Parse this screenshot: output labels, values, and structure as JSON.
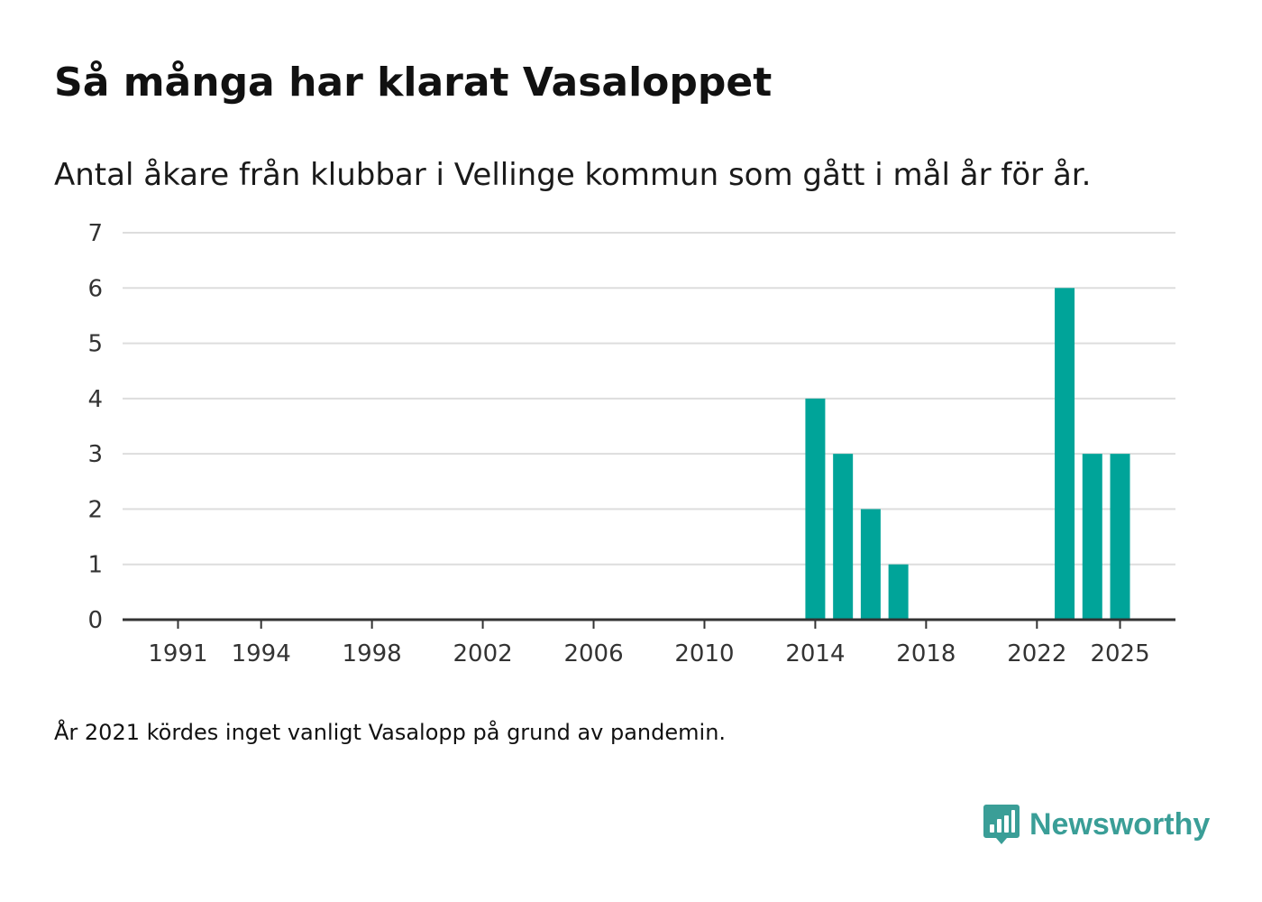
{
  "title": "Så många har klarat Vasaloppet",
  "subtitle": "Antal åkare från klubbar i Vellinge kommun som gått i mål år för år.",
  "footnote": "År 2021 kördes inget vanligt Vasalopp på grund av pandemin.",
  "brand": {
    "name": "Newsworthy",
    "icon": "newsworthy-logo-icon",
    "color": "#3a9e97"
  },
  "colors": {
    "bar": "#00a499",
    "grid": "#dddddd",
    "axis": "#333333",
    "tick_text": "#333333"
  },
  "chart_data": {
    "type": "bar",
    "x": [
      2014,
      2015,
      2016,
      2017,
      2023,
      2024,
      2025
    ],
    "values": [
      4,
      3,
      2,
      1,
      6,
      3,
      3
    ],
    "xlim": [
      1989,
      2027
    ],
    "ylim": [
      0,
      7
    ],
    "xticks": [
      "1991",
      "1994",
      "1998",
      "2002",
      "2006",
      "2010",
      "2014",
      "2018",
      "2022",
      "2025"
    ],
    "yticks": [
      "0",
      "1",
      "2",
      "3",
      "4",
      "5",
      "6",
      "7"
    ],
    "xlabel": "",
    "ylabel": "",
    "grid": true
  }
}
